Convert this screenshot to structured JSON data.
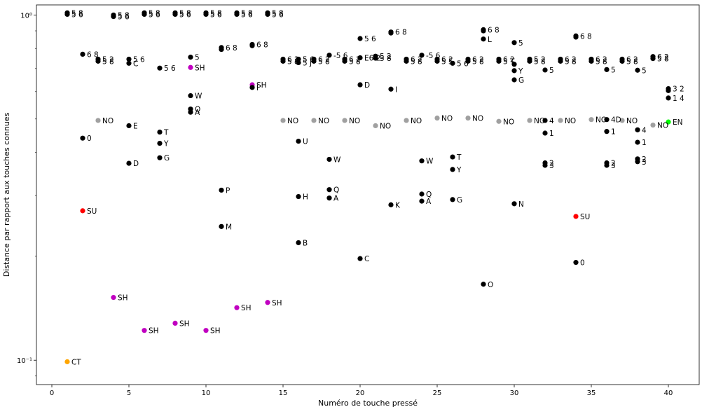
{
  "chart_data": {
    "type": "scatter",
    "title": "",
    "xlabel": "Numéro de touche pressé",
    "ylabel": "Distance par rapport aux touches connues",
    "xlim": [
      -1,
      42
    ],
    "ylim": [
      0.085,
      1.07
    ],
    "yscale": "log",
    "grid": false,
    "x_ticks": [
      0,
      5,
      10,
      15,
      20,
      25,
      30,
      35,
      40
    ],
    "y_ticks": [
      {
        "value": 1.0,
        "label": "10⁰"
      },
      {
        "value": 0.1,
        "label": "10⁻¹"
      }
    ],
    "colors": {
      "black": "#000000",
      "gray": "#a0a0a0",
      "magenta": "#c000c0",
      "red": "#ff0000",
      "orange": "#ffa500",
      "green": "#00ff00"
    },
    "points": [
      {
        "x": 1,
        "y": 0.099,
        "label": "CT",
        "color": "orange"
      },
      {
        "x": 1,
        "y": 1.015,
        "label": "5 8",
        "color": "black"
      },
      {
        "x": 1,
        "y": 1.005,
        "label": "5 6",
        "color": "black"
      },
      {
        "x": 2,
        "y": 0.77,
        "label": "6 8",
        "color": "black"
      },
      {
        "x": 2,
        "y": 0.44,
        "label": "0",
        "color": "black"
      },
      {
        "x": 2,
        "y": 0.271,
        "label": "SU",
        "color": "red"
      },
      {
        "x": 3,
        "y": 0.745,
        "label": "5 2",
        "color": "black"
      },
      {
        "x": 3,
        "y": 0.735,
        "label": "5 8",
        "color": "black"
      },
      {
        "x": 3,
        "y": 0.495,
        "label": "NO",
        "color": "gray"
      },
      {
        "x": 4,
        "y": 1.0,
        "label": "5 8",
        "color": "black"
      },
      {
        "x": 4,
        "y": 0.99,
        "label": "5 6",
        "color": "black"
      },
      {
        "x": 4,
        "y": 0.152,
        "label": "SH",
        "color": "magenta"
      },
      {
        "x": 5,
        "y": 0.745,
        "label": "5 6",
        "color": "black"
      },
      {
        "x": 5,
        "y": 0.725,
        "label": "C",
        "color": "black"
      },
      {
        "x": 5,
        "y": 0.478,
        "label": "E",
        "color": "black"
      },
      {
        "x": 5,
        "y": 0.372,
        "label": "D",
        "color": "black"
      },
      {
        "x": 6,
        "y": 1.015,
        "label": "5 8",
        "color": "black"
      },
      {
        "x": 6,
        "y": 1.005,
        "label": "5 6",
        "color": "black"
      },
      {
        "x": 6,
        "y": 0.122,
        "label": "SH",
        "color": "magenta"
      },
      {
        "x": 7,
        "y": 0.702,
        "label": "5 6",
        "color": "black"
      },
      {
        "x": 7,
        "y": 0.458,
        "label": "T",
        "color": "black"
      },
      {
        "x": 7,
        "y": 0.425,
        "label": "Y",
        "color": "black"
      },
      {
        "x": 7,
        "y": 0.386,
        "label": "G",
        "color": "black"
      },
      {
        "x": 8,
        "y": 1.015,
        "label": "5 8",
        "color": "black"
      },
      {
        "x": 8,
        "y": 1.005,
        "label": "5 6",
        "color": "black"
      },
      {
        "x": 8,
        "y": 0.128,
        "label": "SH",
        "color": "magenta"
      },
      {
        "x": 9,
        "y": 0.755,
        "label": "5",
        "color": "black"
      },
      {
        "x": 9,
        "y": 0.705,
        "label": "SH",
        "color": "magenta"
      },
      {
        "x": 9,
        "y": 0.584,
        "label": "W",
        "color": "black"
      },
      {
        "x": 9,
        "y": 0.534,
        "label": "Q",
        "color": "black"
      },
      {
        "x": 9,
        "y": 0.523,
        "label": "A",
        "color": "black"
      },
      {
        "x": 10,
        "y": 1.015,
        "label": "5 8",
        "color": "black"
      },
      {
        "x": 10,
        "y": 1.005,
        "label": "5 6",
        "color": "black"
      },
      {
        "x": 10,
        "y": 0.122,
        "label": "SH",
        "color": "magenta"
      },
      {
        "x": 11,
        "y": 0.805,
        "label": "6 8",
        "color": "black"
      },
      {
        "x": 11,
        "y": 0.795,
        "label": "",
        "color": "black"
      },
      {
        "x": 11,
        "y": 0.311,
        "label": "P",
        "color": "black"
      },
      {
        "x": 11,
        "y": 0.244,
        "label": "M",
        "color": "black"
      },
      {
        "x": 12,
        "y": 1.015,
        "label": "5 8",
        "color": "black"
      },
      {
        "x": 12,
        "y": 1.005,
        "label": "5 6",
        "color": "black"
      },
      {
        "x": 12,
        "y": 0.142,
        "label": "SH",
        "color": "magenta"
      },
      {
        "x": 13,
        "y": 0.822,
        "label": "6 8",
        "color": "black"
      },
      {
        "x": 13,
        "y": 0.815,
        "label": "",
        "color": "black"
      },
      {
        "x": 13,
        "y": 0.628,
        "label": "SH",
        "color": "magenta"
      },
      {
        "x": 13,
        "y": 0.617,
        "label": "I",
        "color": "black"
      },
      {
        "x": 14,
        "y": 1.015,
        "label": "5 8",
        "color": "black"
      },
      {
        "x": 14,
        "y": 1.005,
        "label": "5 6",
        "color": "black"
      },
      {
        "x": 14,
        "y": 0.147,
        "label": "SH",
        "color": "magenta"
      },
      {
        "x": 15,
        "y": 0.745,
        "label": "6 2",
        "color": "black"
      },
      {
        "x": 15,
        "y": 0.735,
        "label": "5 8",
        "color": "black"
      },
      {
        "x": 15,
        "y": 0.495,
        "label": "NO",
        "color": "gray"
      },
      {
        "x": 16,
        "y": 0.745,
        "label": "5 6",
        "color": "black"
      },
      {
        "x": 16,
        "y": 0.728,
        "label": "5 J",
        "color": "black"
      },
      {
        "x": 16,
        "y": 0.431,
        "label": "U",
        "color": "black"
      },
      {
        "x": 16,
        "y": 0.298,
        "label": "H",
        "color": "black"
      },
      {
        "x": 16,
        "y": 0.219,
        "label": "B",
        "color": "black"
      },
      {
        "x": 17,
        "y": 0.745,
        "label": "6 2",
        "color": "black"
      },
      {
        "x": 17,
        "y": 0.735,
        "label": "5 8",
        "color": "black"
      },
      {
        "x": 17,
        "y": 0.495,
        "label": "NO",
        "color": "gray"
      },
      {
        "x": 18,
        "y": 0.765,
        "label": "-5 6",
        "color": "black"
      },
      {
        "x": 18,
        "y": 0.312,
        "label": "Q",
        "color": "black"
      },
      {
        "x": 18,
        "y": 0.382,
        "label": "W",
        "color": "black"
      },
      {
        "x": 18,
        "y": 0.295,
        "label": "A",
        "color": "black"
      },
      {
        "x": 19,
        "y": 0.745,
        "label": "6 2",
        "color": "black"
      },
      {
        "x": 19,
        "y": 0.735,
        "label": "5 8",
        "color": "black"
      },
      {
        "x": 19,
        "y": 0.495,
        "label": "NO",
        "color": "gray"
      },
      {
        "x": 20,
        "y": 0.855,
        "label": "5 6",
        "color": "black"
      },
      {
        "x": 20,
        "y": 0.752,
        "label": "E6 2",
        "color": "black"
      },
      {
        "x": 20,
        "y": 0.628,
        "label": "D",
        "color": "black"
      },
      {
        "x": 20,
        "y": 0.197,
        "label": "C",
        "color": "black"
      },
      {
        "x": 21,
        "y": 0.76,
        "label": "5 2",
        "color": "black"
      },
      {
        "x": 21,
        "y": 0.75,
        "label": "5 8",
        "color": "black"
      },
      {
        "x": 21,
        "y": 0.478,
        "label": "NO",
        "color": "gray"
      },
      {
        "x": 22,
        "y": 0.893,
        "label": "6 8",
        "color": "black"
      },
      {
        "x": 22,
        "y": 0.887,
        "label": "",
        "color": "black"
      },
      {
        "x": 22,
        "y": 0.61,
        "label": "I",
        "color": "black"
      },
      {
        "x": 22,
        "y": 0.282,
        "label": "K",
        "color": "black"
      },
      {
        "x": 23,
        "y": 0.745,
        "label": "6 2",
        "color": "black"
      },
      {
        "x": 23,
        "y": 0.735,
        "label": "5 8",
        "color": "black"
      },
      {
        "x": 23,
        "y": 0.495,
        "label": "NO",
        "color": "gray"
      },
      {
        "x": 24,
        "y": 0.765,
        "label": "-5 6",
        "color": "black"
      },
      {
        "x": 24,
        "y": 0.378,
        "label": "W",
        "color": "black"
      },
      {
        "x": 24,
        "y": 0.303,
        "label": "Q",
        "color": "black"
      },
      {
        "x": 24,
        "y": 0.289,
        "label": "A",
        "color": "black"
      },
      {
        "x": 25,
        "y": 0.745,
        "label": "6 2",
        "color": "black"
      },
      {
        "x": 25,
        "y": 0.735,
        "label": "5 5",
        "color": "black"
      },
      {
        "x": 25,
        "y": 0.503,
        "label": "NO",
        "color": "gray"
      },
      {
        "x": 26,
        "y": 0.725,
        "label": "5 6",
        "color": "black"
      },
      {
        "x": 26,
        "y": 0.388,
        "label": "T",
        "color": "black"
      },
      {
        "x": 26,
        "y": 0.357,
        "label": "Y",
        "color": "black"
      },
      {
        "x": 26,
        "y": 0.292,
        "label": "G",
        "color": "black"
      },
      {
        "x": 27,
        "y": 0.745,
        "label": "6 2",
        "color": "black"
      },
      {
        "x": 27,
        "y": 0.735,
        "label": "5 8",
        "color": "black"
      },
      {
        "x": 27,
        "y": 0.503,
        "label": "NO",
        "color": "gray"
      },
      {
        "x": 28,
        "y": 0.907,
        "label": "6 8",
        "color": "black"
      },
      {
        "x": 28,
        "y": 0.9,
        "label": "",
        "color": "black"
      },
      {
        "x": 28,
        "y": 0.852,
        "label": "L",
        "color": "black"
      },
      {
        "x": 28,
        "y": 0.166,
        "label": "O",
        "color": "black"
      },
      {
        "x": 29,
        "y": 0.745,
        "label": "6 2",
        "color": "black"
      },
      {
        "x": 29,
        "y": 0.735,
        "label": "5 T",
        "color": "black"
      },
      {
        "x": 29,
        "y": 0.492,
        "label": "NO",
        "color": "gray"
      },
      {
        "x": 30,
        "y": 0.832,
        "label": "5",
        "color": "black"
      },
      {
        "x": 30,
        "y": 0.72,
        "label": "",
        "color": "black"
      },
      {
        "x": 30,
        "y": 0.69,
        "label": "Y",
        "color": "black"
      },
      {
        "x": 30,
        "y": 0.649,
        "label": "G",
        "color": "black"
      },
      {
        "x": 30,
        "y": 0.284,
        "label": "N",
        "color": "black"
      },
      {
        "x": 31,
        "y": 0.745,
        "label": "5 2",
        "color": "black"
      },
      {
        "x": 31,
        "y": 0.735,
        "label": "5 8",
        "color": "black"
      },
      {
        "x": 31,
        "y": 0.495,
        "label": "NO",
        "color": "gray"
      },
      {
        "x": 32,
        "y": 0.693,
        "label": "5",
        "color": "black"
      },
      {
        "x": 32,
        "y": 0.495,
        "label": "4",
        "color": "black"
      },
      {
        "x": 32,
        "y": 0.455,
        "label": "1",
        "color": "black"
      },
      {
        "x": 32,
        "y": 0.373,
        "label": "2",
        "color": "black"
      },
      {
        "x": 32,
        "y": 0.367,
        "label": "3",
        "color": "black"
      },
      {
        "x": 33,
        "y": 0.745,
        "label": "6 2",
        "color": "black"
      },
      {
        "x": 33,
        "y": 0.735,
        "label": "5 8",
        "color": "black"
      },
      {
        "x": 33,
        "y": 0.495,
        "label": "NO",
        "color": "gray"
      },
      {
        "x": 34,
        "y": 0.87,
        "label": "6 8",
        "color": "black"
      },
      {
        "x": 34,
        "y": 0.863,
        "label": "",
        "color": "black"
      },
      {
        "x": 34,
        "y": 0.261,
        "label": "SU",
        "color": "red"
      },
      {
        "x": 34,
        "y": 0.192,
        "label": "0",
        "color": "black"
      },
      {
        "x": 35,
        "y": 0.745,
        "label": "6 2",
        "color": "black"
      },
      {
        "x": 35,
        "y": 0.735,
        "label": "5 8",
        "color": "black"
      },
      {
        "x": 35,
        "y": 0.498,
        "label": "NO",
        "color": "gray"
      },
      {
        "x": 36,
        "y": 0.695,
        "label": "5",
        "color": "black"
      },
      {
        "x": 36,
        "y": 0.498,
        "label": "4D",
        "color": "black"
      },
      {
        "x": 36,
        "y": 0.46,
        "label": "1",
        "color": "black"
      },
      {
        "x": 36,
        "y": 0.373,
        "label": "2",
        "color": "black"
      },
      {
        "x": 36,
        "y": 0.367,
        "label": "3",
        "color": "black"
      },
      {
        "x": 37,
        "y": 0.745,
        "label": "6 2",
        "color": "black"
      },
      {
        "x": 37,
        "y": 0.735,
        "label": "5 8",
        "color": "black"
      },
      {
        "x": 37,
        "y": 0.495,
        "label": "NO",
        "color": "gray"
      },
      {
        "x": 38,
        "y": 0.692,
        "label": "5",
        "color": "black"
      },
      {
        "x": 38,
        "y": 0.465,
        "label": "4",
        "color": "black"
      },
      {
        "x": 38,
        "y": 0.428,
        "label": "1",
        "color": "black"
      },
      {
        "x": 38,
        "y": 0.383,
        "label": "2",
        "color": "black"
      },
      {
        "x": 38,
        "y": 0.376,
        "label": "3",
        "color": "black"
      },
      {
        "x": 39,
        "y": 0.758,
        "label": "6 2",
        "color": "black"
      },
      {
        "x": 39,
        "y": 0.748,
        "label": "5 8",
        "color": "black"
      },
      {
        "x": 39,
        "y": 0.48,
        "label": "NO",
        "color": "gray"
      },
      {
        "x": 40,
        "y": 0.612,
        "label": "3 2",
        "color": "black"
      },
      {
        "x": 40,
        "y": 0.604,
        "label": "",
        "color": "black"
      },
      {
        "x": 40,
        "y": 0.575,
        "label": "1 4",
        "color": "black"
      },
      {
        "x": 40,
        "y": 0.49,
        "label": "EN",
        "color": "green"
      }
    ]
  }
}
